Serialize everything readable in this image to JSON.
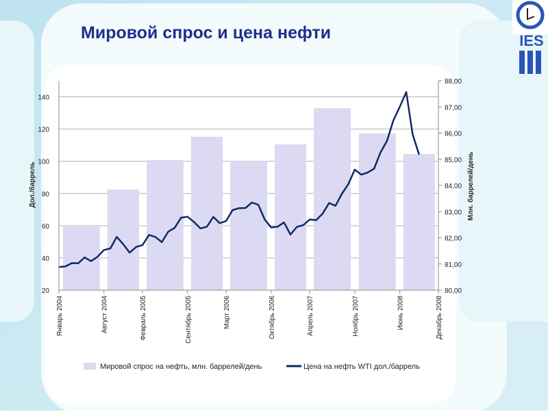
{
  "header": {
    "title": "Мировой спрос и цена нефти",
    "logo": "IES"
  },
  "chart_data": {
    "type": "bar-line",
    "y_label": "Дол./баррель",
    "y2_label": "Млн. баррелей/день",
    "ylim": [
      20,
      150
    ],
    "yticks": [
      20,
      40,
      60,
      80,
      100,
      120,
      140
    ],
    "y2lim": [
      80,
      88
    ],
    "y2ticks": [
      {
        "value": 80,
        "label": "80,00"
      },
      {
        "value": 81,
        "label": "81,00"
      },
      {
        "value": 82,
        "label": "82,00"
      },
      {
        "value": 83,
        "label": "83,00"
      },
      {
        "value": 84,
        "label": "84,00"
      },
      {
        "value": 85,
        "label": "85,00"
      },
      {
        "value": 86,
        "label": "86,00"
      },
      {
        "value": 87,
        "label": "87,00"
      },
      {
        "value": 88,
        "label": "88,00"
      }
    ],
    "xlim": [
      "2004-01",
      "2008-12"
    ],
    "xticks": [
      {
        "value": "2004-01",
        "label": "Январь 2004"
      },
      {
        "value": "2004-08",
        "label": "Август 2004"
      },
      {
        "value": "2005-02",
        "label": "Февраль 2005"
      },
      {
        "value": "2005-09",
        "label": "Сентябрь 2005"
      },
      {
        "value": "2006-03",
        "label": "Март 2006"
      },
      {
        "value": "2006-10",
        "label": "Октябрь 2006"
      },
      {
        "value": "2007-04",
        "label": "Апрель 2007"
      },
      {
        "value": "2007-11",
        "label": "Ноябрь 2007"
      },
      {
        "value": "2008-06",
        "label": "Июнь 2008"
      },
      {
        "value": "2008-12",
        "label": "Декабрь 2008"
      }
    ],
    "grid": true,
    "series": [
      {
        "name": "Мировой спрос на нефть, млн. баррелей/день",
        "type": "bar",
        "axis": "y2",
        "color": "#dcdaf2",
        "values": [
          82.43,
          83.84,
          84.97,
          85.86,
          84.92,
          85.57,
          86.95,
          85.99,
          85.2
        ]
      },
      {
        "name": "Цена на нефть WTI дол./баррель",
        "type": "line",
        "axis": "y",
        "color": "#0d2a66",
        "x": [
          "2004-01",
          "2004-02",
          "2004-03",
          "2004-04",
          "2004-05",
          "2004-06",
          "2004-07",
          "2004-08",
          "2004-09",
          "2004-10",
          "2004-11",
          "2004-12",
          "2005-01",
          "2005-02",
          "2005-03",
          "2005-04",
          "2005-05",
          "2005-06",
          "2005-07",
          "2005-08",
          "2005-09",
          "2005-10",
          "2005-11",
          "2005-12",
          "2006-01",
          "2006-02",
          "2006-03",
          "2006-04",
          "2006-05",
          "2006-06",
          "2006-07",
          "2006-08",
          "2006-09",
          "2006-10",
          "2006-11",
          "2006-12",
          "2007-01",
          "2007-02",
          "2007-03",
          "2007-04",
          "2007-05",
          "2007-06",
          "2007-07",
          "2007-08",
          "2007-09",
          "2007-10",
          "2007-11",
          "2007-12",
          "2008-01",
          "2008-02",
          "2008-03",
          "2008-04",
          "2008-05",
          "2008-06",
          "2008-07",
          "2008-08",
          "2008-09"
        ],
        "values": [
          34.3,
          34.7,
          36.8,
          36.7,
          40.3,
          38.0,
          40.7,
          44.9,
          45.9,
          53.1,
          48.5,
          43.3,
          46.8,
          48.0,
          54.3,
          53.0,
          49.8,
          56.3,
          58.7,
          65.0,
          65.6,
          62.3,
          58.3,
          59.4,
          65.5,
          61.6,
          62.9,
          69.7,
          70.9,
          71.0,
          74.4,
          73.0,
          63.8,
          58.9,
          59.4,
          62.0,
          54.5,
          59.3,
          60.4,
          63.9,
          63.5,
          67.5,
          74.1,
          72.4,
          79.9,
          85.8,
          94.8,
          91.7,
          93.0,
          95.4,
          105.5,
          112.6,
          125.4,
          133.9,
          143.0,
          116.7,
          104.1
        ]
      }
    ],
    "legend": "bottom"
  }
}
